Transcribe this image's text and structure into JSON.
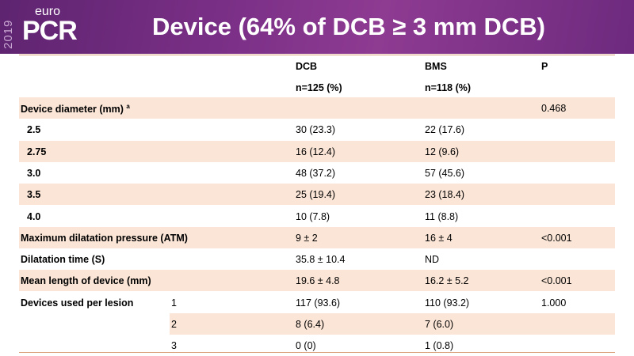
{
  "header": {
    "year": "2019",
    "logo_top": "euro",
    "logo": "PCR",
    "title": "Device (64% of DCB ≥ 3 mm DCB)"
  },
  "table": {
    "columns": [
      "DCB",
      "BMS",
      "P"
    ],
    "subheader": [
      "n=125  (%)",
      "n=118  (%)"
    ],
    "footnote_mark": "a",
    "rows": [
      [
        "Device diameter (mm)",
        null,
        null,
        null,
        "0.468"
      ],
      [
        "2.5",
        null,
        "30 (23.3)",
        "22 (17.6)",
        null
      ],
      [
        "2.75",
        null,
        "16 (12.4)",
        "12 (9.6)",
        null
      ],
      [
        "3.0",
        null,
        "48 (37.2)",
        "57 (45.6)",
        null
      ],
      [
        "3.5",
        null,
        "25 (19.4)",
        "23 (18.4)",
        null
      ],
      [
        "4.0",
        null,
        "10 (7.8)",
        "11 (8.8)",
        null
      ],
      [
        "Maximum dilatation pressure (ATM)",
        null,
        "9 ± 2",
        "16 ± 4",
        "<0.001"
      ],
      [
        "Dilatation time (S)",
        null,
        "35.8 ± 10.4",
        "ND",
        null
      ],
      [
        "Mean length of device (mm)",
        null,
        "19.6 ± 4.8",
        "16.2 ± 5.2",
        "<0.001"
      ],
      [
        "Devices used per lesion",
        "1",
        "117 (93.6)",
        "110 (93.2)",
        "1.000"
      ],
      [
        null,
        "2",
        "8 (6.4)",
        "7 (6.0)",
        null
      ],
      [
        null,
        "3",
        "0 (0)",
        "1 (0.8)",
        null
      ]
    ]
  }
}
